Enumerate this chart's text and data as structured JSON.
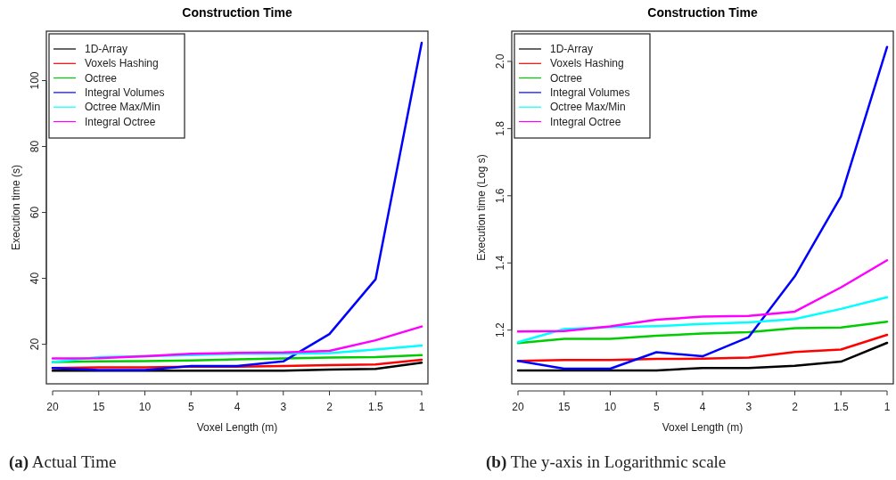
{
  "chart_data": [
    {
      "type": "line",
      "title": "Construction Time",
      "xlabel": "Voxel Length (m)",
      "ylabel": "Execution time (s)",
      "categories": [
        "20",
        "15",
        "10",
        "5",
        "4",
        "3",
        "2",
        "1.5",
        "1"
      ],
      "ylim": [
        8,
        115
      ],
      "yticks": [
        20,
        40,
        60,
        80,
        100
      ],
      "legend": "top left",
      "grid": false,
      "annotations": [
        "(a) Actual Time"
      ],
      "series": [
        {
          "name": "1D-Array",
          "color": "#000000",
          "values": [
            12.0,
            12.0,
            12.0,
            12.0,
            12.0,
            12.0,
            12.3,
            12.5,
            14.4
          ]
        },
        {
          "name": "Voxels Hashing",
          "color": "#ff0000",
          "values": [
            12.8,
            13.0,
            13.0,
            13.2,
            13.2,
            13.4,
            13.7,
            13.9,
            15.3
          ]
        },
        {
          "name": "Octree",
          "color": "#00cd00",
          "values": [
            14.6,
            14.8,
            14.9,
            15.1,
            15.4,
            15.7,
            16.0,
            16.1,
            16.7
          ]
        },
        {
          "name": "Integral Volumes",
          "color": "#0000ff",
          "values": [
            12.8,
            12.2,
            12.2,
            13.4,
            13.4,
            14.8,
            23.1,
            39.7,
            111.5
          ]
        },
        {
          "name": "Octree Max/Min",
          "color": "#00ffff",
          "values": [
            14.6,
            16.1,
            16.4,
            16.7,
            17.1,
            17.1,
            17.3,
            18.4,
            19.6
          ]
        },
        {
          "name": "Integral Octree",
          "color": "#ff00ff",
          "values": [
            15.7,
            15.8,
            16.4,
            17.1,
            17.4,
            17.5,
            18.0,
            21.2,
            25.4
          ]
        }
      ]
    },
    {
      "type": "line",
      "title": "Construction Time",
      "xlabel": "Voxel Length (m)",
      "ylabel": "Execution time (Log s)",
      "categories": [
        "20",
        "15",
        "10",
        "5",
        "4",
        "3",
        "2",
        "1.5",
        "1"
      ],
      "ylim": [
        1.04,
        2.09
      ],
      "yticks": [
        {
          "value": 1.2,
          "label": "1.2"
        },
        {
          "value": 1.4,
          "label": "1.4"
        },
        {
          "value": 1.6,
          "label": "1.6"
        },
        {
          "value": 1.8,
          "label": "1.8"
        },
        {
          "value": 2.0,
          "label": "2.0"
        }
      ],
      "legend": "top left",
      "grid": false,
      "annotations": [
        "(b) The y-axis in Logarithmic scale"
      ],
      "series": [
        {
          "name": "1D-Array",
          "color": "#000000",
          "values": [
            1.08,
            1.08,
            1.08,
            1.08,
            1.087,
            1.087,
            1.094,
            1.106,
            1.162
          ]
        },
        {
          "name": "Voxels Hashing",
          "color": "#ff0000",
          "values": [
            1.108,
            1.111,
            1.111,
            1.114,
            1.115,
            1.118,
            1.135,
            1.142,
            1.186
          ]
        },
        {
          "name": "Octree",
          "color": "#00cd00",
          "values": [
            1.161,
            1.174,
            1.174,
            1.183,
            1.19,
            1.194,
            1.206,
            1.208,
            1.225
          ]
        },
        {
          "name": "Integral Volumes",
          "color": "#0000ff",
          "values": [
            1.108,
            1.085,
            1.085,
            1.134,
            1.122,
            1.179,
            1.36,
            1.598,
            2.043
          ]
        },
        {
          "name": "Octree Max/Min",
          "color": "#00ffff",
          "values": [
            1.164,
            1.203,
            1.209,
            1.212,
            1.218,
            1.223,
            1.233,
            1.263,
            1.298
          ]
        },
        {
          "name": "Integral Octree",
          "color": "#ff00ff",
          "values": [
            1.196,
            1.197,
            1.211,
            1.231,
            1.24,
            1.242,
            1.255,
            1.327,
            1.408
          ]
        }
      ]
    }
  ]
}
